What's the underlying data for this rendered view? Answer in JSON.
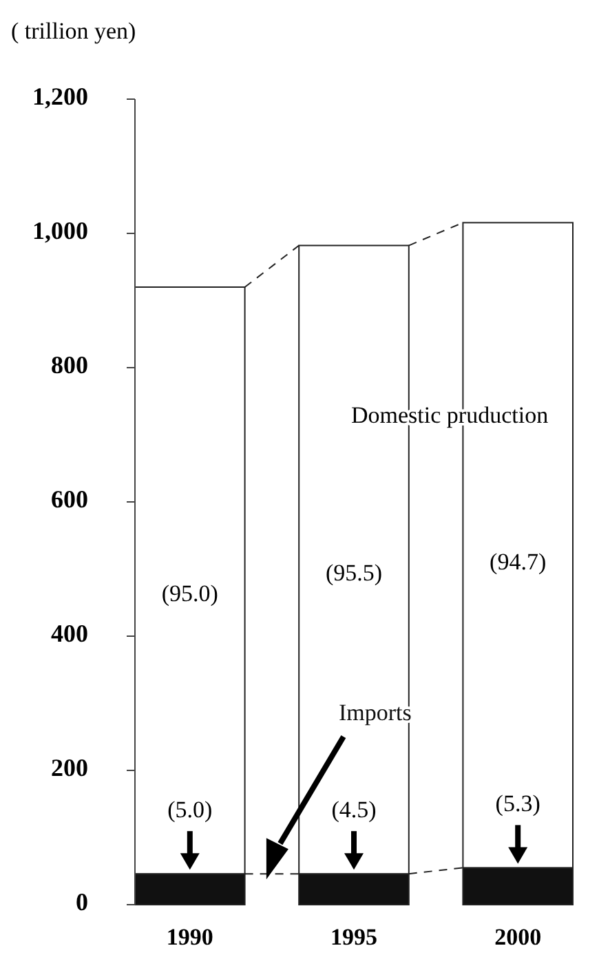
{
  "chart_data": {
    "type": "bar",
    "stacked": true,
    "ylabel": "( trillion yen)",
    "categories": [
      "1990",
      "1995",
      "2000"
    ],
    "series": [
      {
        "name": "Imports",
        "color": "#111111",
        "values": [
          46,
          46,
          55
        ]
      },
      {
        "name": "Domestic pruduction",
        "color": "#ffffff",
        "values": [
          874,
          936,
          961
        ]
      }
    ],
    "ylim": [
      0,
      1200
    ],
    "yticks": [
      {
        "value": 0,
        "label": "0"
      },
      {
        "value": 200,
        "label": "200"
      },
      {
        "value": 400,
        "label": "400"
      },
      {
        "value": 600,
        "label": "600"
      },
      {
        "value": 800,
        "label": "800"
      },
      {
        "value": 1000,
        "label": "1,000"
      },
      {
        "value": 1200,
        "label": "1,200"
      }
    ],
    "annotations": [
      "(95.0)",
      "(95.5)",
      "(94.7)",
      "(5.0)",
      "(4.5)",
      "(5.3)"
    ]
  }
}
